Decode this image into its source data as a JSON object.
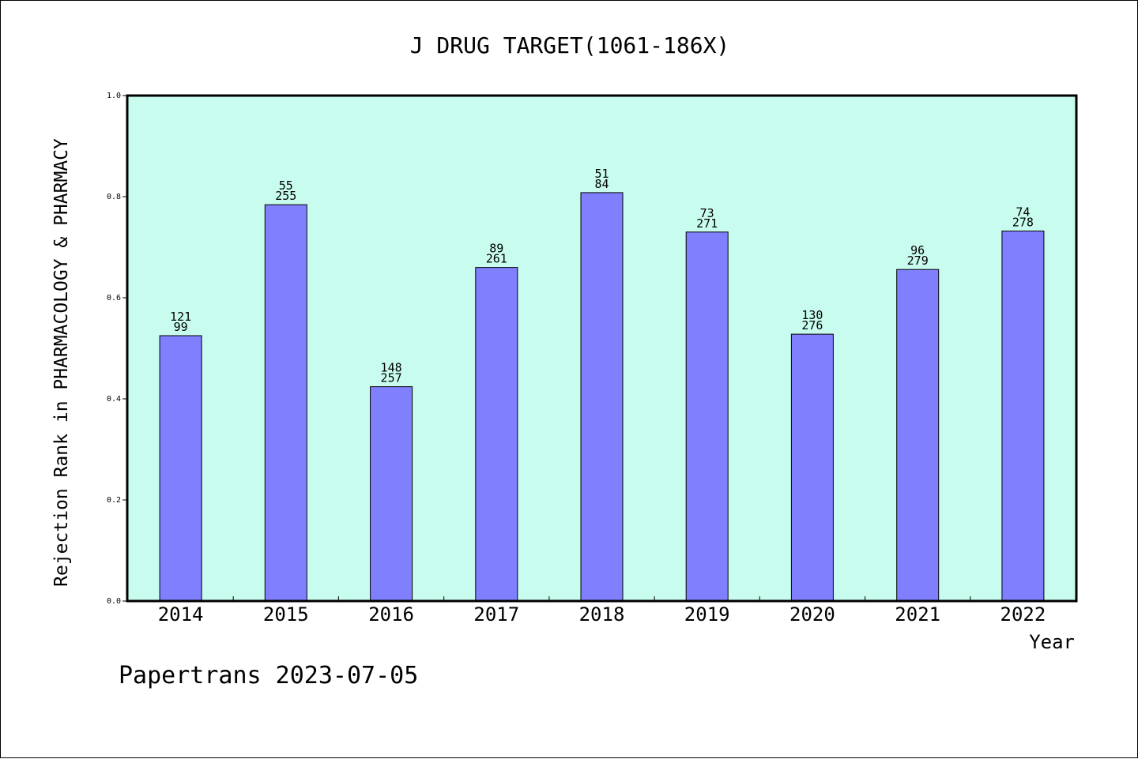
{
  "chart_data": {
    "type": "bar",
    "title": "J DRUG TARGET(1061-186X)",
    "xlabel": "Year",
    "ylabel": "Rejection Rank in PHARMACOLOGY & PHARMACY",
    "categories": [
      "2014",
      "2015",
      "2016",
      "2017",
      "2018",
      "2019",
      "2020",
      "2021",
      "2022"
    ],
    "values": [
      0.525,
      0.784,
      0.424,
      0.66,
      0.808,
      0.73,
      0.528,
      0.656,
      0.732
    ],
    "labels_top": [
      "121",
      "55",
      "148",
      "89",
      "51",
      "73",
      "130",
      "96",
      "74"
    ],
    "labels_bottom": [
      "99",
      "255",
      "257",
      "261",
      "84",
      "271",
      "276",
      "279",
      "278"
    ],
    "ylim": [
      0,
      1.0
    ],
    "yticks": [
      "0.0",
      "0.2",
      "0.4",
      "0.6",
      "0.8",
      "1.0"
    ],
    "grid": false,
    "colors": {
      "plot_background": "#c8fcee",
      "bar_fill": "#8080ff",
      "bar_stroke": "#000000"
    }
  },
  "footer": {
    "text": "Papertrans 2023-07-05"
  }
}
